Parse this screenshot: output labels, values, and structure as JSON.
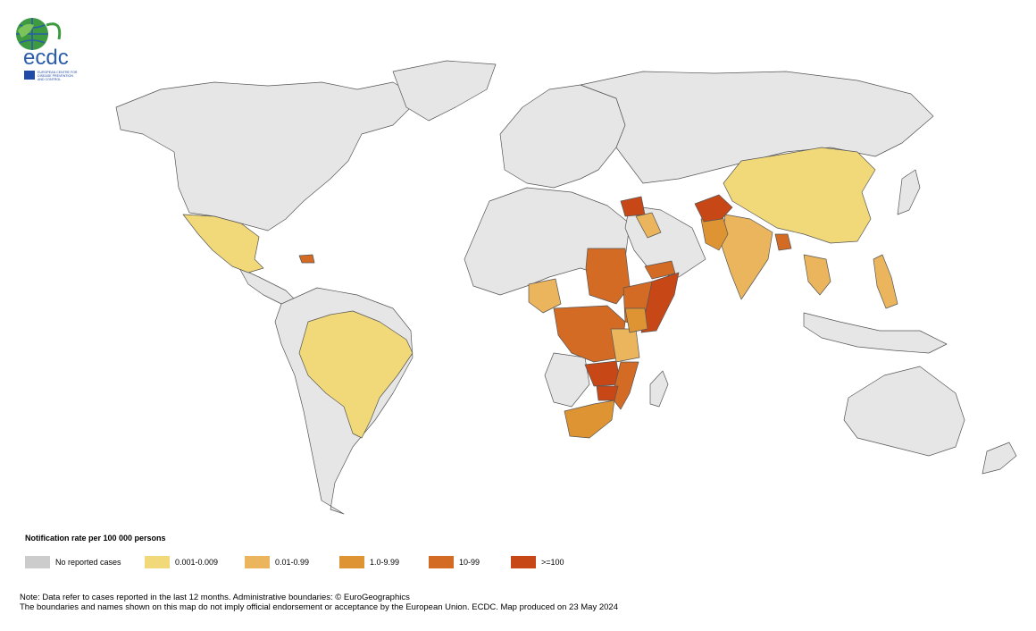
{
  "logo": {
    "wordmark": "ecdc",
    "line1": "EUROPEAN CENTRE FOR",
    "line2": "DISEASE PREVENTION",
    "line3": "AND CONTROL"
  },
  "colors": {
    "land_none": "#e6e6e6",
    "border": "#555555",
    "legend_none": "#cccccc",
    "c1": "#f1d97a",
    "c2": "#eab55c",
    "c3": "#de9433",
    "c4": "#d36b25",
    "c5": "#c84717"
  },
  "legend": {
    "title": "Notification rate per 100 000 persons",
    "items": [
      {
        "label": "No reported cases",
        "color": "#cccccc"
      },
      {
        "label": "0.001-0.009",
        "color": "#f1d97a"
      },
      {
        "label": "0.01-0.99",
        "color": "#eab55c"
      },
      {
        "label": "1.0-9.99",
        "color": "#de9433"
      },
      {
        "label": "10-99",
        "color": "#d36b25"
      },
      {
        "label": ">=100",
        "color": "#c84717"
      }
    ]
  },
  "note": {
    "line1": "Note: Data refer to cases reported in the last 12 months. Administrative boundaries: © EuroGeographics",
    "line2": "The boundaries and names shown on this map do not imply official endorsement or acceptance by the European Union. ECDC. Map produced on 23 May 2024"
  }
}
